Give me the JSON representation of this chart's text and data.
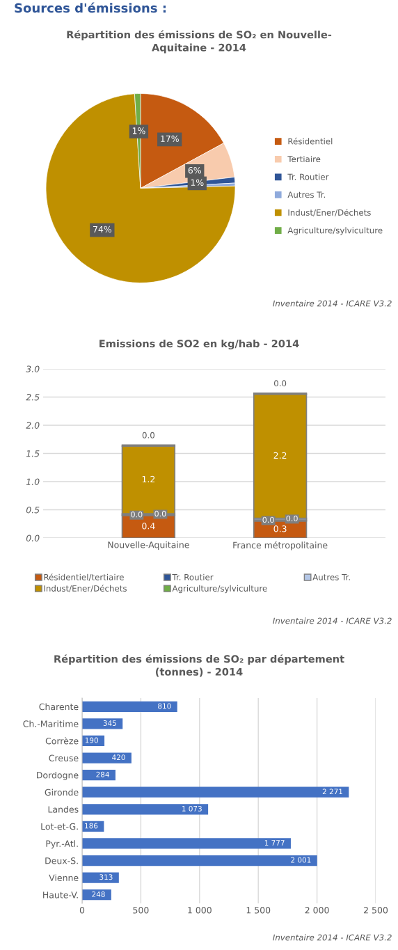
{
  "chart_data": [
    {
      "type": "pie",
      "title": "Répartition des émissions de SO₂ en Nouvelle-\nAquitaine - 2014",
      "categories": [
        "Résidentiel",
        "Tertiaire",
        "Tr. Routier",
        "Autres Tr.",
        "Indust/Ener/Déchets",
        "Agriculture/sylviculture"
      ],
      "values": [
        17,
        6,
        1,
        0.5,
        74,
        1
      ],
      "colors": [
        "#c55a11",
        "#f8cbad",
        "#2f5597",
        "#8faadc",
        "#bf9000",
        "#70ad47"
      ],
      "value_labels": [
        "17%",
        "6%",
        "1%",
        null,
        "74%",
        "1%"
      ],
      "legend": "right",
      "annotations": [
        "Sources d'émissions :",
        "Inventaire 2014 - ICARE V3.2"
      ]
    },
    {
      "type": "bar",
      "title": "Emissions de SO2 en kg/hab - 2014",
      "stacked": true,
      "categories": [
        "Nouvelle-Aquitaine",
        "France métropolitaine"
      ],
      "series": [
        {
          "name": "Résidentiel/tertiaire",
          "color": "#c55a11",
          "values": [
            0.4,
            0.3
          ],
          "value_labels": [
            "0.4",
            "0.3"
          ]
        },
        {
          "name": "Tr. Routier",
          "color": "#2f5597",
          "values": [
            0.01,
            0.02
          ],
          "value_labels": [
            "0.0",
            "0.0"
          ]
        },
        {
          "name": "Autres Tr.",
          "color": "#b4c7e7",
          "values": [
            0.02,
            0.03
          ],
          "value_labels": [
            "0.0",
            "0.0"
          ]
        },
        {
          "name": "Indust/Ener/Déchets",
          "color": "#bf9000",
          "values": [
            1.2,
            2.2
          ],
          "value_labels": [
            "1.2",
            "2.2"
          ]
        },
        {
          "name": "Agriculture/sylviculture",
          "color": "#70ad47",
          "values": [
            0.02,
            0.02
          ],
          "value_labels": [
            "0.0",
            "0.0"
          ]
        }
      ],
      "ylim": [
        0,
        3
      ],
      "yticks": [
        {
          "value": 0,
          "label": "0.0"
        },
        {
          "value": 0.5,
          "label": "0.5"
        },
        {
          "value": 1,
          "label": "1.0"
        },
        {
          "value": 1.5,
          "label": "1.5"
        },
        {
          "value": 2,
          "label": "2.0"
        },
        {
          "value": 2.5,
          "label": "2.5"
        },
        {
          "value": 3,
          "label": "3.0"
        }
      ],
      "grid": "y",
      "legend": "bottom",
      "annotations": [
        "Inventaire 2014 - ICARE V3.2"
      ]
    },
    {
      "type": "bar",
      "orientation": "horizontal",
      "title": "Répartition des émissions de SO₂ par département\n(tonnes) - 2014",
      "categories": [
        "Charente",
        "Ch.-Maritime",
        "Corrèze",
        "Creuse",
        "Dordogne",
        "Gironde",
        "Landes",
        "Lot-et-G.",
        "Pyr.-Atl.",
        "Deux-S.",
        "Vienne",
        "Haute-V."
      ],
      "values": [
        810,
        345,
        190,
        420,
        284,
        2271,
        1073,
        186,
        1777,
        2001,
        313,
        248
      ],
      "value_labels": [
        "810",
        "345",
        "190",
        "420",
        "284",
        "2 271",
        "1 073",
        "186",
        "1 777",
        "2 001",
        "313",
        "248"
      ],
      "color": "#4472c4",
      "xlim": [
        0,
        2500
      ],
      "xticks": [
        0,
        500,
        {
          "value": 1000,
          "label": "1 000"
        },
        {
          "value": 1500,
          "label": "1 500"
        },
        {
          "value": 2000,
          "label": "2 000"
        },
        {
          "value": 2500,
          "label": "2 500"
        }
      ],
      "grid": "x",
      "annotations": [
        "Inventaire 2014 - ICARE V3.2"
      ]
    }
  ]
}
